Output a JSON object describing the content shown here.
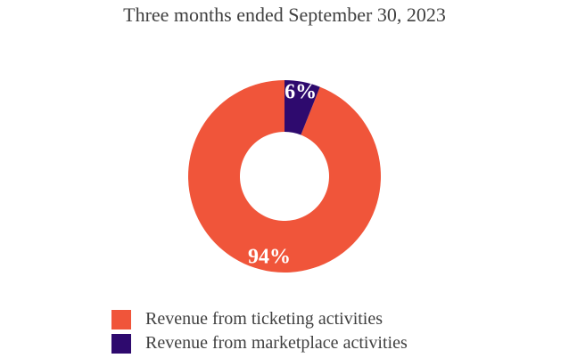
{
  "chart_data": {
    "type": "pie",
    "title": "Three months ended September 30, 2023",
    "donut": true,
    "legend_position": "bottom",
    "slices": [
      {
        "name": "Revenue from ticketing activities",
        "value": 94,
        "label": "94%",
        "color": "#F0553A"
      },
      {
        "name": "Revenue from marketplace activities",
        "value": 6,
        "label": "6%",
        "color": "#2E0A6E"
      }
    ]
  }
}
